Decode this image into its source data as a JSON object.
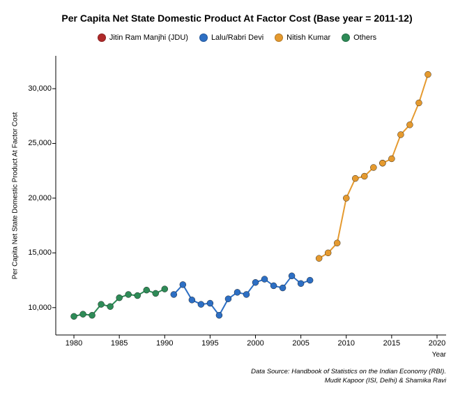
{
  "chart": {
    "type": "line-scatter",
    "title": "Per Capita Net State Domestic Product At Factor Cost (Base year = 2011-12)",
    "title_fontsize": 14,
    "x_axis_label": "Year",
    "y_axis_label": "Per Capita Net State Domestic Product At Factor Cost",
    "xlim": [
      1978,
      2021
    ],
    "ylim": [
      7500,
      33000
    ],
    "x_ticks": [
      1980,
      1985,
      1990,
      1995,
      2000,
      2005,
      2010,
      2015,
      2020
    ],
    "y_ticks": [
      10000,
      15000,
      20000,
      25000,
      30000
    ],
    "y_tick_labels": [
      "10,000",
      "15,000",
      "20,000",
      "25,000",
      "30,000"
    ],
    "background_color": "#ffffff",
    "axis_color": "#000000",
    "marker_radius": 4.5,
    "line_width": 2,
    "source_line1": "Data Source: Handbook of Statistics on the Indian Economy (RBI).",
    "source_line2": "Mudit Kapoor (ISI, Delhi) & Shamika Ravi",
    "legend": [
      {
        "label": "Jitin Ram Manjhi (JDU)",
        "color": "#b02a2a"
      },
      {
        "label": "Lalu/Rabri Devi",
        "color": "#2d6fc4"
      },
      {
        "label": "Nitish Kumar",
        "color": "#e59a2f"
      },
      {
        "label": "Others",
        "color": "#2e8b57"
      }
    ],
    "series": [
      {
        "name": "Others",
        "color": "#2e8b57",
        "points": [
          [
            1980,
            9200
          ],
          [
            1981,
            9400
          ],
          [
            1982,
            9300
          ],
          [
            1983,
            10300
          ],
          [
            1984,
            10100
          ],
          [
            1985,
            10900
          ],
          [
            1986,
            11200
          ],
          [
            1987,
            11100
          ],
          [
            1988,
            11600
          ],
          [
            1989,
            11300
          ],
          [
            1990,
            11700
          ]
        ]
      },
      {
        "name": "Lalu/Rabri Devi",
        "color": "#2d6fc4",
        "points": [
          [
            1991,
            11200
          ],
          [
            1992,
            12100
          ],
          [
            1993,
            10700
          ],
          [
            1994,
            10300
          ],
          [
            1995,
            10400
          ],
          [
            1996,
            9300
          ],
          [
            1997,
            10800
          ],
          [
            1998,
            11400
          ],
          [
            1999,
            11200
          ],
          [
            2000,
            12300
          ],
          [
            2001,
            12600
          ],
          [
            2002,
            12000
          ],
          [
            2003,
            11800
          ],
          [
            2004,
            12900
          ],
          [
            2005,
            12200
          ],
          [
            2006,
            12500
          ]
        ]
      },
      {
        "name": "Nitish Kumar",
        "color": "#e59a2f",
        "points": [
          [
            2007,
            14500
          ],
          [
            2008,
            15000
          ],
          [
            2009,
            15900
          ],
          [
            2010,
            20000
          ],
          [
            2011,
            21800
          ],
          [
            2012,
            22000
          ],
          [
            2013,
            22800
          ]
        ]
      },
      {
        "name": "Jitin Ram Manjhi (JDU)",
        "color": "#b02a2a",
        "points": [
          [
            2014,
            23200
          ]
        ]
      },
      {
        "name": "Nitish Kumar (cont.)",
        "color": "#e59a2f",
        "points": [
          [
            2014,
            23200
          ],
          [
            2015,
            23600
          ],
          [
            2016,
            25800
          ],
          [
            2017,
            26700
          ],
          [
            2018,
            28700
          ],
          [
            2019,
            31300
          ]
        ]
      }
    ]
  }
}
